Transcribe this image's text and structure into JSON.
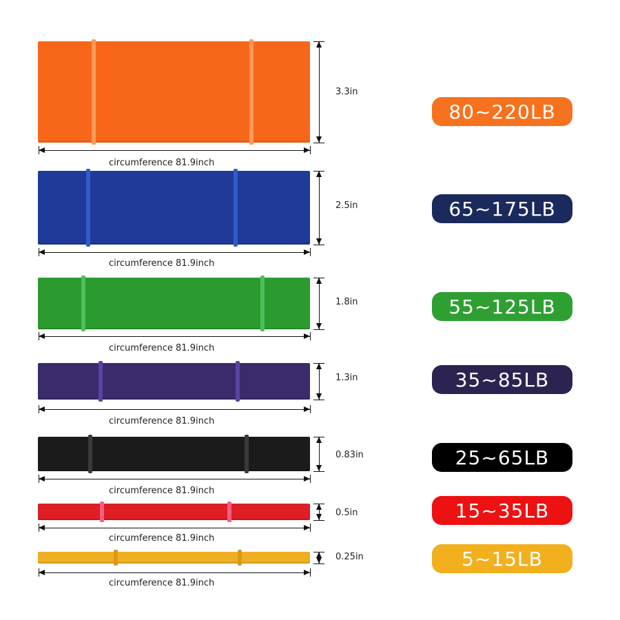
{
  "bands": [
    {
      "color_name": "orange",
      "band_color": "#f8661a",
      "loop_color": "#fb9a5a",
      "pill_color": "#f7721e",
      "width_label": "3.3in",
      "circumference_label": "circumference 81.9inch",
      "resistance_label": "80~220LB"
    },
    {
      "color_name": "blue",
      "band_color": "#1f3a98",
      "loop_color": "#2f5cc8",
      "pill_color": "#1b2a5c",
      "width_label": "2.5in",
      "circumference_label": "circumference 81.9inch",
      "resistance_label": "65~175LB"
    },
    {
      "color_name": "green",
      "band_color": "#2b9a2f",
      "loop_color": "#4cc05a",
      "pill_color": "#2ea032",
      "width_label": "1.8in",
      "circumference_label": "circumference 81.9inch",
      "resistance_label": "55~125LB"
    },
    {
      "color_name": "purple",
      "band_color": "#3b2b6c",
      "loop_color": "#5a44a0",
      "pill_color": "#2d2350",
      "width_label": "1.3in",
      "circumference_label": "circumference 81.9inch",
      "resistance_label": "35~85LB"
    },
    {
      "color_name": "black",
      "band_color": "#1b1b1b",
      "loop_color": "#3a3a3a",
      "pill_color": "#000000",
      "width_label": "0.83in",
      "circumference_label": "circumference 81.9inch",
      "resistance_label": "25~65LB"
    },
    {
      "color_name": "red",
      "band_color": "#de1d24",
      "loop_color": "#f4607a",
      "pill_color": "#ee1111",
      "width_label": "0.5in",
      "circumference_label": "circumference 81.9inch",
      "resistance_label": "15~35LB"
    },
    {
      "color_name": "yellow",
      "band_color": "#f0ae22",
      "loop_color": "#d89a18",
      "pill_color": "#f2b01e",
      "width_label": "0.25in",
      "circumference_label": "circumference 81.9inch",
      "resistance_label": "5~15LB"
    }
  ]
}
